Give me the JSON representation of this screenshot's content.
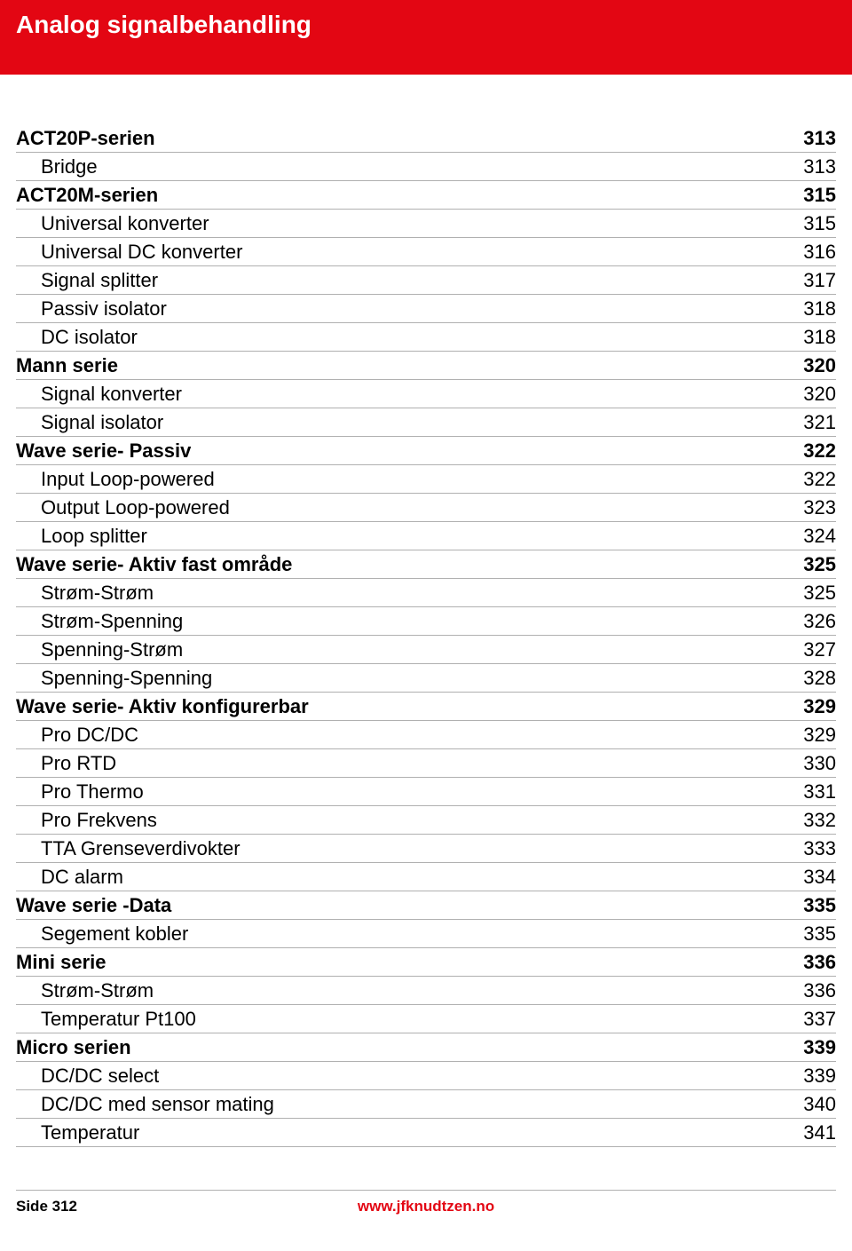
{
  "header": {
    "title": "Analog signalbehandling"
  },
  "colors": {
    "header_bg": "#e30613",
    "header_text": "#ffffff",
    "rule": "#b0b0b0",
    "text": "#000000",
    "link": "#e30613"
  },
  "typography": {
    "header_title_fontsize": 28,
    "row_fontsize": 22,
    "footer_fontsize": 17,
    "font_family": "Arial"
  },
  "toc": [
    {
      "level": 0,
      "label": "ACT20P-serien",
      "page": "313"
    },
    {
      "level": 1,
      "label": "Bridge",
      "page": "313"
    },
    {
      "level": 0,
      "label": "ACT20M-serien",
      "page": "315"
    },
    {
      "level": 1,
      "label": "Universal konverter",
      "page": "315"
    },
    {
      "level": 1,
      "label": "Universal DC konverter",
      "page": "316"
    },
    {
      "level": 1,
      "label": "Signal splitter",
      "page": "317"
    },
    {
      "level": 1,
      "label": "Passiv isolator",
      "page": "318"
    },
    {
      "level": 1,
      "label": "DC isolator",
      "page": "318"
    },
    {
      "level": 0,
      "label": "Mann serie",
      "page": "320"
    },
    {
      "level": 1,
      "label": "Signal konverter",
      "page": "320"
    },
    {
      "level": 1,
      "label": "Signal isolator",
      "page": "321"
    },
    {
      "level": 0,
      "label": "Wave serie- Passiv",
      "page": "322"
    },
    {
      "level": 1,
      "label": "Input Loop-powered",
      "page": "322"
    },
    {
      "level": 1,
      "label": "Output Loop-powered",
      "page": "323"
    },
    {
      "level": 1,
      "label": "Loop splitter",
      "page": "324"
    },
    {
      "level": 0,
      "label": "Wave serie- Aktiv fast område",
      "page": "325"
    },
    {
      "level": 1,
      "label": "Strøm-Strøm",
      "page": "325"
    },
    {
      "level": 1,
      "label": "Strøm-Spenning",
      "page": "326"
    },
    {
      "level": 1,
      "label": "Spenning-Strøm",
      "page": "327"
    },
    {
      "level": 1,
      "label": "Spenning-Spenning",
      "page": "328"
    },
    {
      "level": 0,
      "label": "Wave serie- Aktiv konfigurerbar",
      "page": "329"
    },
    {
      "level": 1,
      "label": "Pro DC/DC",
      "page": "329"
    },
    {
      "level": 1,
      "label": "Pro RTD",
      "page": "330"
    },
    {
      "level": 1,
      "label": "Pro Thermo",
      "page": "331"
    },
    {
      "level": 1,
      "label": "Pro Frekvens",
      "page": "332"
    },
    {
      "level": 1,
      "label": "TTA Grenseverdivokter",
      "page": "333"
    },
    {
      "level": 1,
      "label": "DC alarm",
      "page": "334"
    },
    {
      "level": 0,
      "label": "Wave serie -Data",
      "page": "335"
    },
    {
      "level": 1,
      "label": "Segement kobler",
      "page": "335"
    },
    {
      "level": 0,
      "label": "Mini serie",
      "page": "336"
    },
    {
      "level": 1,
      "label": "Strøm-Strøm",
      "page": "336"
    },
    {
      "level": 1,
      "label": "Temperatur Pt100",
      "page": "337"
    },
    {
      "level": 0,
      "label": "Micro serien",
      "page": "339"
    },
    {
      "level": 1,
      "label": "DC/DC select",
      "page": "339"
    },
    {
      "level": 1,
      "label": "DC/DC med sensor mating",
      "page": "340"
    },
    {
      "level": 1,
      "label": "Temperatur",
      "page": "341"
    }
  ],
  "footer": {
    "left": "Side 312",
    "center": "www.jfknudtzen.no"
  }
}
